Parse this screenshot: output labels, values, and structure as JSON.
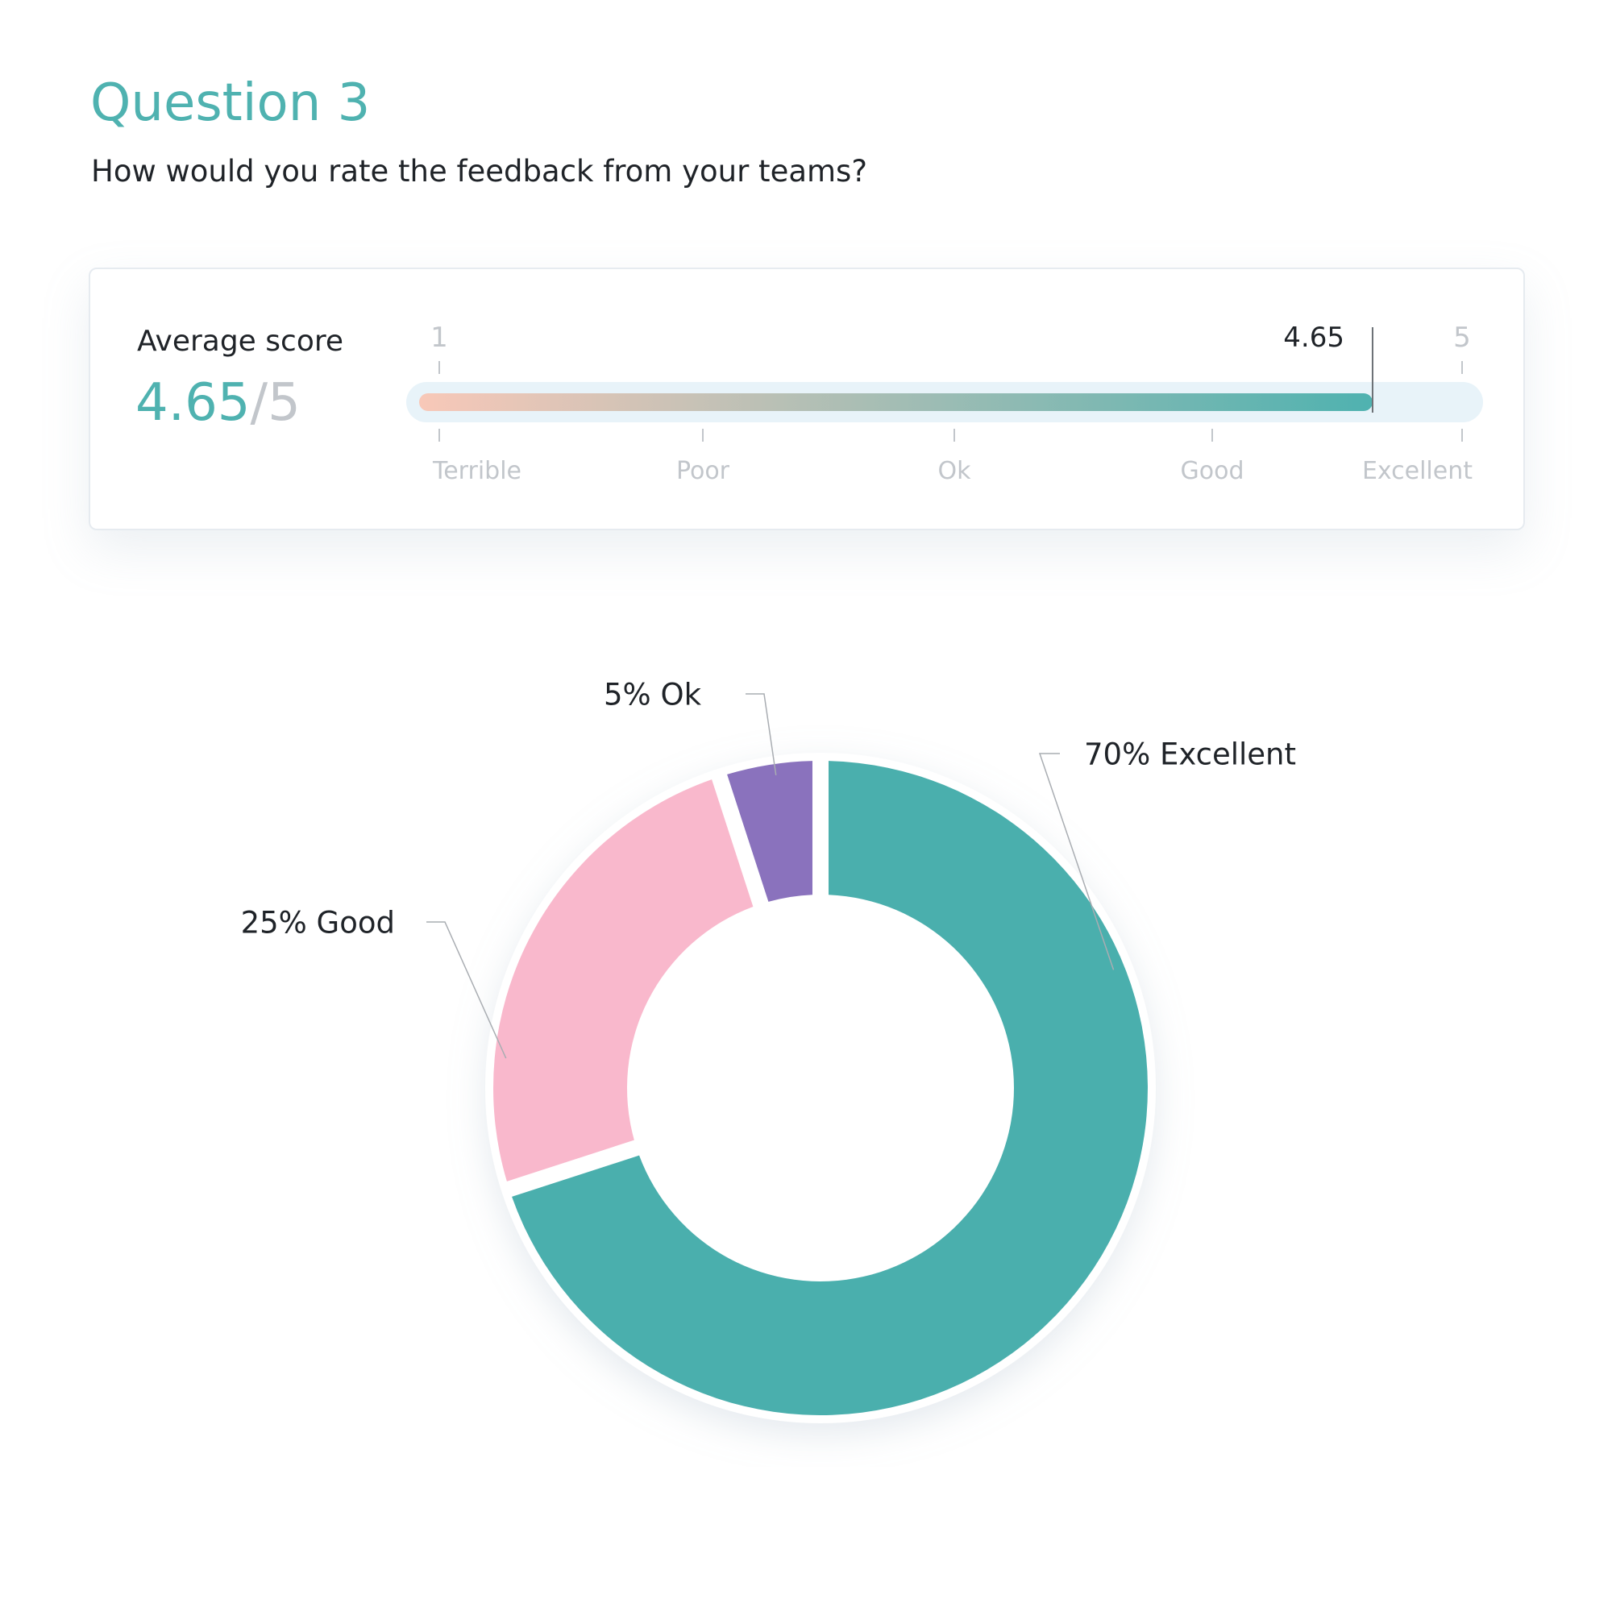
{
  "question": {
    "title": "Question 3",
    "text": "How would you rate the feedback from your teams?"
  },
  "colors": {
    "accent": "#4fb2b0",
    "muted": "#c2c6cb",
    "track": "#e8f3f9",
    "gradient_start": "#f8c8b8",
    "gradient_end": "#4fb2b0",
    "excellent": "#4aafad",
    "good": "#f9b8cc",
    "ok": "#8a72bd"
  },
  "score_card": {
    "label": "Average score",
    "value": "4.65",
    "separator": "/",
    "max": "5",
    "scale_min": 1,
    "scale_max": 5,
    "score": 4.65,
    "min_label": "1",
    "max_label": "5",
    "marker_label": "4.65",
    "categories": [
      "Terrible",
      "Poor",
      "Ok",
      "Good",
      "Excellent"
    ]
  },
  "chart_data": {
    "type": "pie",
    "donut": true,
    "start": "top",
    "direction": "clockwise",
    "slices": [
      {
        "category": "Excellent",
        "value": 70,
        "label": "70% Excellent",
        "color": "#4aafad"
      },
      {
        "category": "Good",
        "value": 25,
        "label": "25% Good",
        "color": "#f9b8cc"
      },
      {
        "category": "Ok",
        "value": 5,
        "label": "5% Ok",
        "color": "#8a72bd"
      }
    ]
  }
}
